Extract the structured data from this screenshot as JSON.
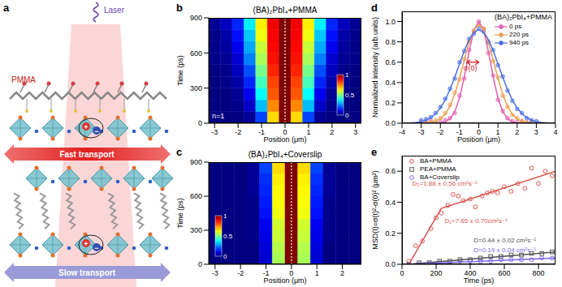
{
  "schematic": {
    "panel_label": "a",
    "labels": {
      "polymer": "PMMA",
      "laser": "Laser",
      "fast": "Fast transport",
      "slow": "Slow transport"
    },
    "charges": [
      "+",
      "−"
    ]
  },
  "chart_data": [
    {
      "panel_label": "b",
      "type": "heatmap",
      "title": "(BA)₂PbI₄+PMMA",
      "x_label": "Position (μm)",
      "y_label": "Time (ps)",
      "x": [
        -3,
        -2.5,
        -2,
        -1.5,
        -1,
        -0.5,
        0,
        0.5,
        1,
        1.5,
        2,
        2.5,
        3
      ],
      "y": [
        50,
        150,
        250,
        350,
        450,
        550,
        650,
        750,
        850
      ],
      "cells": [
        [
          0,
          0,
          0,
          0.02,
          0.19,
          0.66,
          1,
          0.66,
          0.19,
          0.02,
          0,
          0,
          0
        ],
        [
          0,
          0,
          0.01,
          0.07,
          0.31,
          0.74,
          1,
          0.74,
          0.31,
          0.07,
          0.01,
          0,
          0
        ],
        [
          0,
          0,
          0.02,
          0.11,
          0.38,
          0.79,
          1,
          0.79,
          0.38,
          0.11,
          0.02,
          0,
          0
        ],
        [
          0,
          0.01,
          0.04,
          0.16,
          0.44,
          0.81,
          1,
          0.81,
          0.44,
          0.16,
          0.04,
          0.01,
          0
        ],
        [
          0,
          0.01,
          0.06,
          0.2,
          0.49,
          0.84,
          1,
          0.84,
          0.49,
          0.2,
          0.06,
          0.01,
          0
        ],
        [
          0.01,
          0.02,
          0.08,
          0.25,
          0.54,
          0.86,
          1,
          0.86,
          0.54,
          0.25,
          0.08,
          0.02,
          0.01
        ],
        [
          0.01,
          0.03,
          0.11,
          0.29,
          0.57,
          0.87,
          1,
          0.87,
          0.57,
          0.29,
          0.11,
          0.03,
          0.01
        ],
        [
          0.01,
          0.04,
          0.14,
          0.32,
          0.61,
          0.88,
          1,
          0.88,
          0.61,
          0.32,
          0.14,
          0.04,
          0.01
        ],
        [
          0.02,
          0.06,
          0.16,
          0.36,
          0.64,
          0.89,
          1,
          0.89,
          0.64,
          0.36,
          0.16,
          0.06,
          0.02
        ]
      ],
      "xlim": [
        -3.25,
        3.25
      ],
      "xticks": [
        -3,
        -2,
        -1,
        0,
        1,
        2,
        3
      ],
      "ylim": [
        0,
        900
      ],
      "yticks": [
        0,
        300,
        600,
        900
      ],
      "colorbar": {
        "range": [
          0,
          1
        ],
        "ticks": [
          0,
          0.5,
          1
        ]
      },
      "annotations": [
        "n=1"
      ],
      "reference_x": 0
    },
    {
      "panel_label": "c",
      "type": "heatmap",
      "title": "(BA)₂PbI₄+Coverslip",
      "x_label": "Position (μm)",
      "y_label": "Time (ps)",
      "x": [
        -3,
        -2.5,
        -2,
        -1.5,
        -1,
        -0.5,
        0,
        0.5,
        1,
        1.5,
        2,
        2.5,
        3
      ],
      "y": [
        50,
        150,
        250,
        350,
        450,
        550,
        650,
        750,
        850
      ],
      "cells": [
        [
          0,
          0,
          0,
          0,
          0.08,
          0.54,
          1,
          0.54,
          0.08,
          0,
          0,
          0,
          0
        ],
        [
          0,
          0,
          0,
          0,
          0.09,
          0.55,
          1,
          0.55,
          0.09,
          0,
          0,
          0,
          0
        ],
        [
          0,
          0,
          0,
          0.01,
          0.1,
          0.57,
          1,
          0.57,
          0.1,
          0.01,
          0,
          0,
          0
        ],
        [
          0,
          0,
          0,
          0.01,
          0.11,
          0.58,
          1,
          0.58,
          0.11,
          0.01,
          0,
          0,
          0
        ],
        [
          0,
          0,
          0,
          0.01,
          0.14,
          0.61,
          1,
          0.61,
          0.14,
          0.01,
          0,
          0,
          0
        ],
        [
          0,
          0,
          0,
          0.01,
          0.15,
          0.62,
          1,
          0.62,
          0.15,
          0.01,
          0,
          0,
          0
        ],
        [
          0,
          0,
          0,
          0.02,
          0.16,
          0.63,
          1,
          0.63,
          0.16,
          0.02,
          0,
          0,
          0
        ],
        [
          0,
          0,
          0,
          0.02,
          0.17,
          0.64,
          1,
          0.64,
          0.17,
          0.02,
          0,
          0,
          0
        ],
        [
          0,
          0,
          0,
          0.02,
          0.19,
          0.66,
          1,
          0.66,
          0.19,
          0.02,
          0,
          0,
          0
        ]
      ],
      "xlim": [
        -3.25,
        2.75
      ],
      "xticks": [
        -3,
        -2,
        -1,
        0,
        1,
        2
      ],
      "ylim": [
        0,
        900
      ],
      "yticks": [
        0,
        300,
        600,
        900
      ],
      "colorbar": {
        "range": [
          0,
          1
        ],
        "ticks": [
          0,
          0.5,
          1
        ]
      },
      "reference_x": 0
    },
    {
      "panel_label": "d",
      "type": "scatter",
      "title": "(BA)₂PbI₄+PMMA",
      "x_label": "Position (μm)",
      "y_label": "Normalized intensity (arb.units)",
      "xlim": [
        -4,
        4
      ],
      "xticks": [
        -4,
        -3,
        -2,
        -1,
        0,
        1,
        2,
        3,
        4
      ],
      "ylim": [
        0,
        1.1
      ],
      "yticks": [
        {
          "value": 0,
          "label": "0.0"
        },
        0.2,
        0.4,
        0.6,
        0.8,
        {
          "value": 1,
          "label": "1.0"
        }
      ],
      "legend": "upper right",
      "annotations": [
        "σ(0)"
      ],
      "x": [
        -4,
        -3.75,
        -3.5,
        -3.25,
        -3,
        -2.75,
        -2.5,
        -2.25,
        -2,
        -1.75,
        -1.5,
        -1.25,
        -1,
        -0.75,
        -0.5,
        -0.25,
        0,
        0.25,
        0.5,
        0.75,
        1,
        1.25,
        1.5,
        1.75,
        2,
        2.25,
        2.5,
        2.75,
        3,
        3.25,
        3.5,
        3.75,
        4
      ],
      "series": [
        {
          "name": "0 ps",
          "color": "#e060b0",
          "marker": "circle",
          "values": [
            null,
            null,
            null,
            null,
            0.01,
            0,
            0.02,
            0,
            0.01,
            0.03,
            0.05,
            0.1,
            0.27,
            0.44,
            0.72,
            0.9,
            1,
            0.93,
            0.69,
            0.47,
            0.23,
            0.12,
            0.05,
            0.02,
            0.01,
            0.02,
            0,
            0.01,
            0,
            null,
            null,
            null,
            null
          ],
          "fit": {
            "values": [
              0,
              0,
              0,
              0,
              0,
              0,
              0,
              0.001,
              0.004,
              0.014,
              0.044,
              0.114,
              0.249,
              0.458,
              0.707,
              0.917,
              1,
              0.917,
              0.707,
              0.458,
              0.249,
              0.114,
              0.044,
              0.014,
              0.004,
              0.001,
              0,
              0,
              0,
              0,
              0,
              0,
              0
            ]
          }
        },
        {
          "name": "220 ps",
          "color": "#e8a050",
          "marker": "circle",
          "values": [
            null,
            null,
            null,
            null,
            0.01,
            0.02,
            0.01,
            0.03,
            0.05,
            0.1,
            0.18,
            0.3,
            0.43,
            0.63,
            0.8,
            0.91,
            0.97,
            0.93,
            0.79,
            0.61,
            0.45,
            0.27,
            0.16,
            0.08,
            0.05,
            0.02,
            0.01,
            0.01,
            0,
            null,
            null,
            null,
            null
          ],
          "fit": {
            "values": [
              0,
              0,
              0,
              0,
              0.001,
              0.003,
              0.007,
              0.019,
              0.043,
              0.089,
              0.167,
              0.286,
              0.444,
              0.625,
              0.798,
              0.924,
              0.97,
              0.924,
              0.798,
              0.625,
              0.444,
              0.286,
              0.167,
              0.089,
              0.043,
              0.019,
              0.007,
              0.003,
              0.001,
              0,
              0,
              0,
              0
            ]
          }
        },
        {
          "name": "940 ps",
          "color": "#4a6ee0",
          "marker": "circle",
          "values": [
            null,
            null,
            null,
            null,
            0.03,
            0.04,
            0.06,
            0.1,
            0.16,
            0.24,
            0.34,
            0.44,
            0.6,
            0.71,
            0.83,
            0.88,
            0.93,
            0.9,
            0.8,
            0.72,
            0.57,
            0.46,
            0.32,
            0.22,
            0.14,
            0.1,
            0.05,
            0.03,
            0.02,
            null,
            null,
            null,
            null
          ],
          "fit": {
            "values": [
              0.001,
              0.002,
              0.004,
              0.008,
              0.016,
              0.03,
              0.054,
              0.093,
              0.15,
              0.229,
              0.331,
              0.453,
              0.585,
              0.713,
              0.822,
              0.894,
              0.92,
              0.894,
              0.822,
              0.713,
              0.585,
              0.453,
              0.331,
              0.229,
              0.15,
              0.093,
              0.054,
              0.03,
              0.016,
              0.008,
              0.004,
              0.002,
              0.001
            ]
          }
        }
      ]
    },
    {
      "panel_label": "e",
      "type": "scatter",
      "x_label": "Time (ps)",
      "y_label": "MSD(t)=σ(t)²-σ(0)² (μm²)",
      "xlim": [
        0,
        900
      ],
      "xticks": [
        0,
        200,
        400,
        600,
        800
      ],
      "ylim": [
        0,
        0.7
      ],
      "yticks": [
        {
          "value": 0,
          "label": "0.0"
        },
        0.2,
        0.4,
        0.6
      ],
      "legend": "upper left",
      "series": [
        {
          "name": "BA+PMMA",
          "color": "#d9534f",
          "marker": "hollow_circle",
          "x": [
            40,
            80,
            120,
            170,
            200,
            230,
            270,
            300,
            330,
            360,
            400,
            430,
            470,
            500,
            530,
            560,
            600,
            640,
            680,
            720,
            760,
            800,
            840,
            880
          ],
          "values": [
            0.02,
            0.12,
            0.15,
            0.23,
            0.3,
            0.33,
            0.38,
            0.45,
            0.44,
            0.41,
            0.42,
            0.37,
            0.44,
            0.46,
            0.47,
            0.46,
            0.5,
            0.47,
            0.52,
            0.49,
            0.62,
            0.52,
            0.6,
            0.57
          ],
          "fit": {
            "x": [
              40,
              230,
              900
            ],
            "values": [
              0,
              0.36,
              0.6
            ]
          },
          "fit_labels": [
            "D₂=1.88 ± 0.56 cm²s⁻¹",
            "D₁=7.65 ± 0.70cm²s⁻¹"
          ]
        },
        {
          "name": "PEA+PMMA",
          "color": "#555555",
          "marker": "hollow_square",
          "x": [
            40,
            100,
            160,
            220,
            280,
            340,
            400,
            460,
            520,
            580,
            640,
            700,
            760,
            820,
            880
          ],
          "values": [
            0,
            0.01,
            0.01,
            0.02,
            0.02,
            0.03,
            0.03,
            0.04,
            0.05,
            0.05,
            0.06,
            0.06,
            0.07,
            0.07,
            0.08
          ],
          "fit": {
            "x": [
              40,
              900
            ],
            "values": [
              0,
              0.08
            ]
          },
          "fit_labels": [
            "D=0.44 ± 0.02 cm²s⁻¹"
          ]
        },
        {
          "name": "BA+Coverslip",
          "color": "#7b68ee",
          "marker": "hollow_circle",
          "x": [
            40,
            100,
            160,
            220,
            280,
            340,
            400,
            460,
            520,
            580,
            640,
            700,
            760,
            820,
            880
          ],
          "values": [
            0,
            0,
            0.01,
            0.01,
            0.01,
            0.02,
            0.02,
            0.02,
            0.02,
            0.03,
            0.03,
            0.03,
            0.03,
            0.04,
            0.04
          ],
          "fit": {
            "x": [
              40,
              900
            ],
            "values": [
              0,
              0.04
            ]
          },
          "fit_labels": [
            "D=0.19 ± 0.04 cm²s⁻¹"
          ]
        }
      ]
    }
  ]
}
